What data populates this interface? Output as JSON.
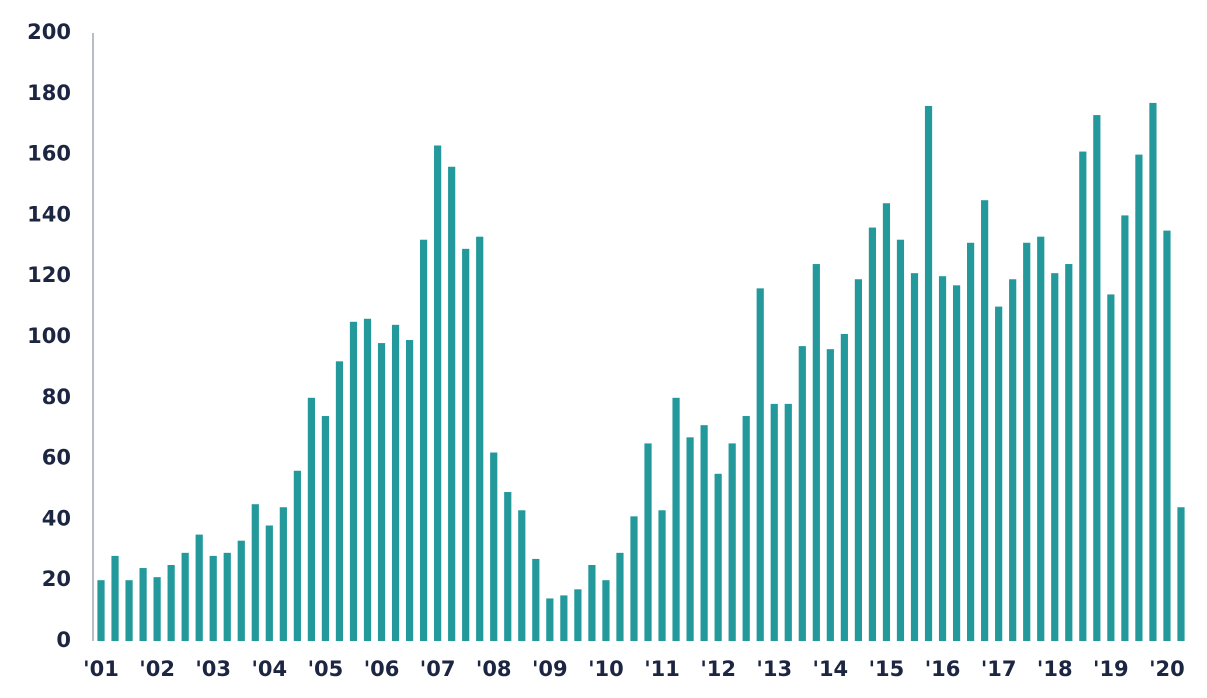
{
  "chart_data": {
    "type": "bar",
    "categories": [
      "'01",
      null,
      null,
      null,
      "'02",
      null,
      null,
      null,
      "'03",
      null,
      null,
      null,
      "'04",
      null,
      null,
      null,
      "'05",
      null,
      null,
      null,
      "'06",
      null,
      null,
      null,
      "'07",
      null,
      null,
      null,
      "'08",
      null,
      null,
      null,
      "'09",
      null,
      null,
      null,
      "'10",
      null,
      null,
      null,
      "'11",
      null,
      null,
      null,
      "'12",
      null,
      null,
      null,
      "'13",
      null,
      null,
      null,
      "'14",
      null,
      null,
      null,
      "'15",
      null,
      null,
      null,
      "'16",
      null,
      null,
      null,
      "'17",
      null,
      null,
      null,
      "'18",
      null,
      null,
      null,
      "'19",
      null,
      null,
      null,
      "'20",
      null
    ],
    "values": [
      20,
      28,
      20,
      24,
      21,
      25,
      29,
      35,
      28,
      29,
      33,
      45,
      38,
      44,
      56,
      80,
      74,
      92,
      105,
      106,
      98,
      104,
      99,
      132,
      163,
      156,
      129,
      133,
      62,
      49,
      43,
      27,
      14,
      15,
      17,
      25,
      20,
      29,
      41,
      65,
      43,
      80,
      67,
      71,
      55,
      65,
      74,
      116,
      78,
      78,
      97,
      124,
      96,
      101,
      119,
      136,
      144,
      132,
      121,
      176,
      120,
      117,
      131,
      145,
      110,
      119,
      131,
      133,
      121,
      124,
      161,
      173,
      114,
      140,
      160,
      177,
      135,
      44
    ],
    "color": "#23999b",
    "ylim": [
      0,
      200
    ],
    "yticks": [
      0,
      20,
      40,
      60,
      80,
      100,
      120,
      140,
      160,
      180,
      200
    ],
    "grid": false
  }
}
